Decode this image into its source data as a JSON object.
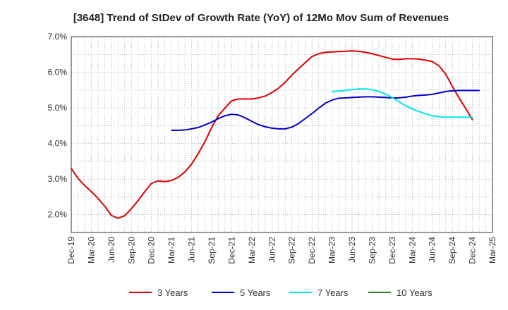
{
  "chart_data": {
    "type": "line",
    "title": "[3648]  Trend of StDev of Growth Rate (YoY) of 12Mo Mov Sum of Revenues",
    "xlabel": "",
    "ylabel": "",
    "ylim": [
      1.5,
      7.0
    ],
    "y_ticks": [
      2.0,
      3.0,
      4.0,
      5.0,
      6.0,
      7.0
    ],
    "y_tick_labels": [
      "2.0%",
      "3.0%",
      "4.0%",
      "5.0%",
      "6.0%",
      "7.0%"
    ],
    "x_tick_labels": [
      "Dec-19",
      "Mar-20",
      "Jun-20",
      "Sep-20",
      "Dec-20",
      "Mar-21",
      "Jun-21",
      "Sep-21",
      "Dec-21",
      "Mar-22",
      "Jun-22",
      "Sep-22",
      "Dec-22",
      "Mar-23",
      "Jun-23",
      "Sep-23",
      "Dec-23",
      "Mar-24",
      "Jun-24",
      "Sep-24",
      "Dec-24",
      "Mar-25"
    ],
    "x_start": "Dec-19",
    "x_months": 63,
    "legend_position": "bottom",
    "series": [
      {
        "name": "3 Years",
        "color": "#dd0000",
        "start_month_index": 0,
        "values": [
          3.3,
          3.02,
          2.82,
          2.65,
          2.46,
          2.24,
          1.98,
          1.9,
          1.97,
          2.17,
          2.4,
          2.65,
          2.88,
          2.95,
          2.93,
          2.96,
          3.05,
          3.2,
          3.42,
          3.72,
          4.05,
          4.45,
          4.78,
          5.0,
          5.2,
          5.25,
          5.25,
          5.25,
          5.28,
          5.33,
          5.43,
          5.55,
          5.72,
          5.92,
          6.1,
          6.27,
          6.44,
          6.52,
          6.56,
          6.57,
          6.58,
          6.59,
          6.6,
          6.59,
          6.56,
          6.52,
          6.47,
          6.42,
          6.37,
          6.36,
          6.38,
          6.38,
          6.37,
          6.34,
          6.3,
          6.18,
          5.95,
          5.6,
          5.28,
          4.98,
          4.67
        ]
      },
      {
        "name": "5 Years",
        "color": "#0000cc",
        "start_month_index": 15,
        "values": [
          4.37,
          4.37,
          4.38,
          4.41,
          4.45,
          4.52,
          4.6,
          4.7,
          4.78,
          4.82,
          4.8,
          4.72,
          4.62,
          4.53,
          4.47,
          4.43,
          4.41,
          4.41,
          4.46,
          4.56,
          4.7,
          4.84,
          4.99,
          5.13,
          5.22,
          5.27,
          5.28,
          5.29,
          5.3,
          5.31,
          5.31,
          5.3,
          5.29,
          5.28,
          5.28,
          5.3,
          5.33,
          5.35,
          5.36,
          5.38,
          5.42,
          5.46,
          5.48,
          5.49,
          5.49,
          5.49,
          5.49
        ]
      },
      {
        "name": "7 Years",
        "color": "#00e5ee",
        "start_month_index": 39,
        "values": [
          5.46,
          5.47,
          5.49,
          5.51,
          5.53,
          5.53,
          5.51,
          5.46,
          5.39,
          5.29,
          5.17,
          5.06,
          4.97,
          4.9,
          4.83,
          4.78,
          4.75,
          4.74,
          4.74,
          4.74,
          4.74,
          4.74
        ]
      },
      {
        "name": "10 Years",
        "color": "#228822",
        "start_month_index": 0,
        "values": []
      }
    ]
  }
}
